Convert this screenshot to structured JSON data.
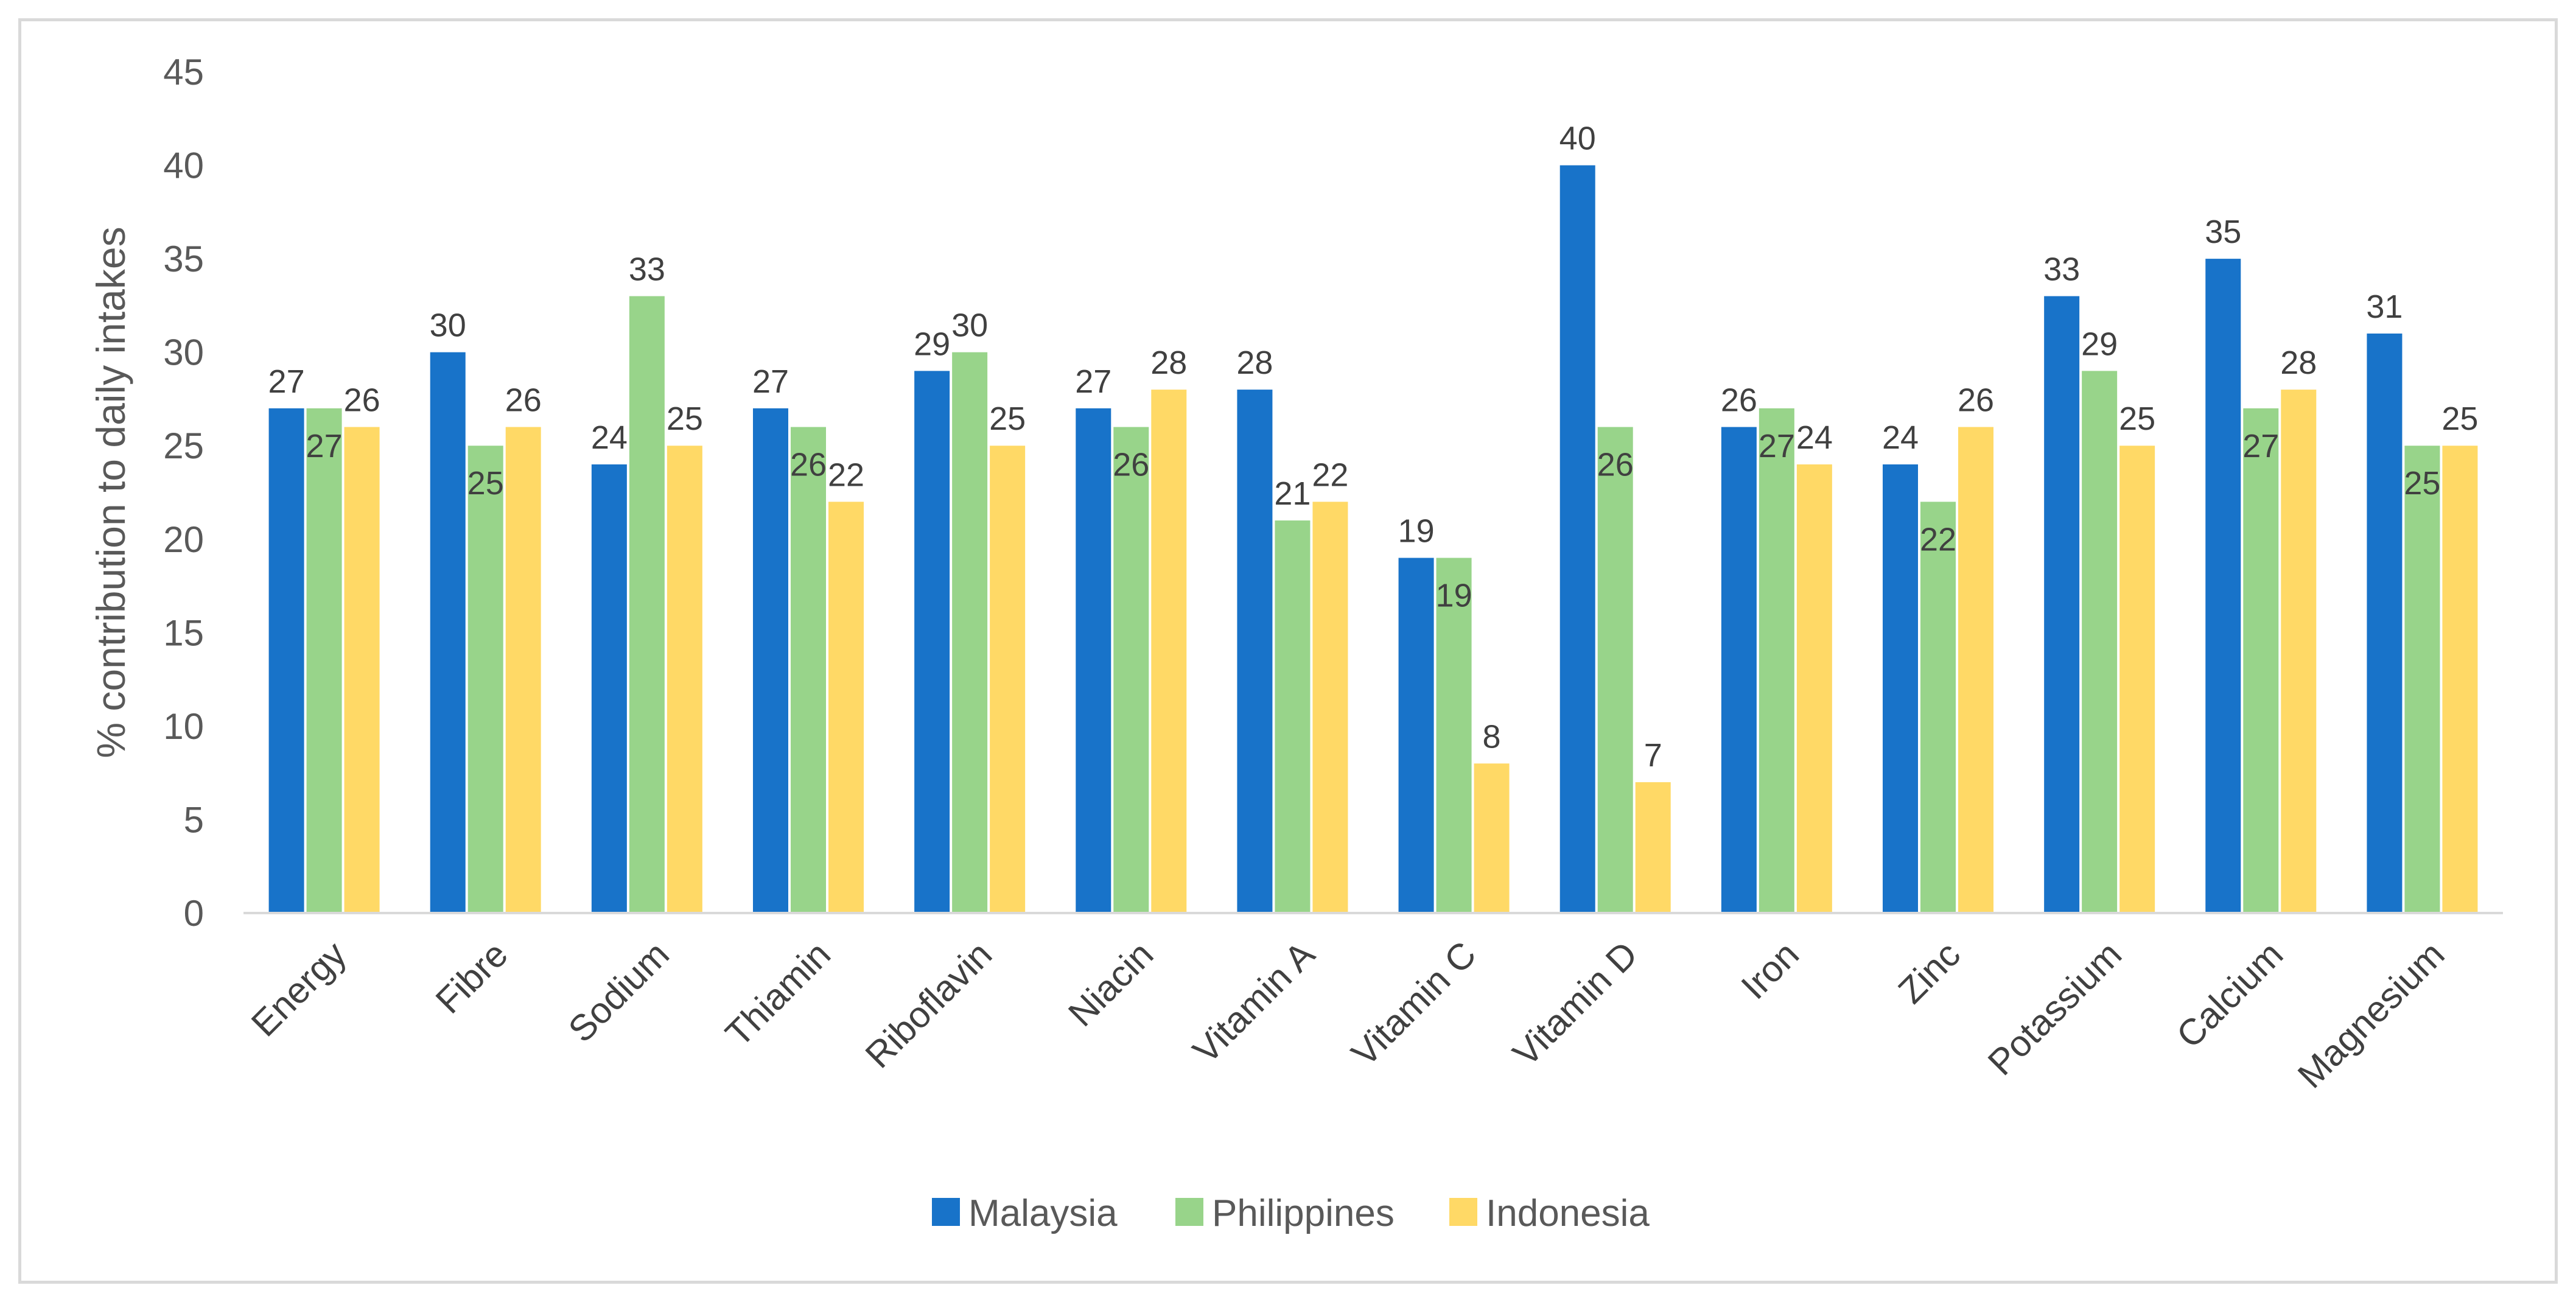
{
  "chart_data": {
    "type": "bar",
    "title": "",
    "xlabel": "",
    "ylabel": "% contribution to daily intakes",
    "ylim": [
      0,
      45
    ],
    "yticks": [
      0,
      5,
      10,
      15,
      20,
      25,
      30,
      35,
      40,
      45
    ],
    "grid": false,
    "legend_position": "bottom",
    "categories": [
      "Energy",
      "Fibre",
      "Sodium",
      "Thiamin",
      "Riboflavin",
      "Niacin",
      "Vitamin A",
      "Vitamin C",
      "Vitamin D",
      "Iron",
      "Zinc",
      "Potassium",
      "Calcium",
      "Magnesium"
    ],
    "series": [
      {
        "name": "Malaysia",
        "color": "#1873c9",
        "values": [
          27,
          30,
          24,
          27,
          29,
          27,
          28,
          19,
          40,
          26,
          24,
          33,
          35,
          31
        ]
      },
      {
        "name": "Philippines",
        "color": "#98d48a",
        "values": [
          27,
          25,
          33,
          26,
          30,
          26,
          21,
          19,
          26,
          27,
          22,
          29,
          27,
          25
        ]
      },
      {
        "name": "Indonesia",
        "color": "#ffd966",
        "values": [
          26,
          26,
          25,
          22,
          25,
          28,
          22,
          8,
          7,
          24,
          26,
          25,
          28,
          25
        ]
      }
    ],
    "data_label_positions": [
      [
        "above",
        "inside",
        "above"
      ],
      [
        "above",
        "inside",
        "above"
      ],
      [
        "above",
        "above",
        "above"
      ],
      [
        "above",
        "inside",
        "above"
      ],
      [
        "above",
        "above",
        "above"
      ],
      [
        "above",
        "inside",
        "above"
      ],
      [
        "above",
        "above",
        "above"
      ],
      [
        "above",
        "inside",
        "above"
      ],
      [
        "above",
        "inside",
        "above"
      ],
      [
        "above",
        "inside",
        "above"
      ],
      [
        "above",
        "inside",
        "above"
      ],
      [
        "above",
        "above",
        "above"
      ],
      [
        "above",
        "inside",
        "above"
      ],
      [
        "above",
        "inside",
        "above"
      ]
    ]
  }
}
